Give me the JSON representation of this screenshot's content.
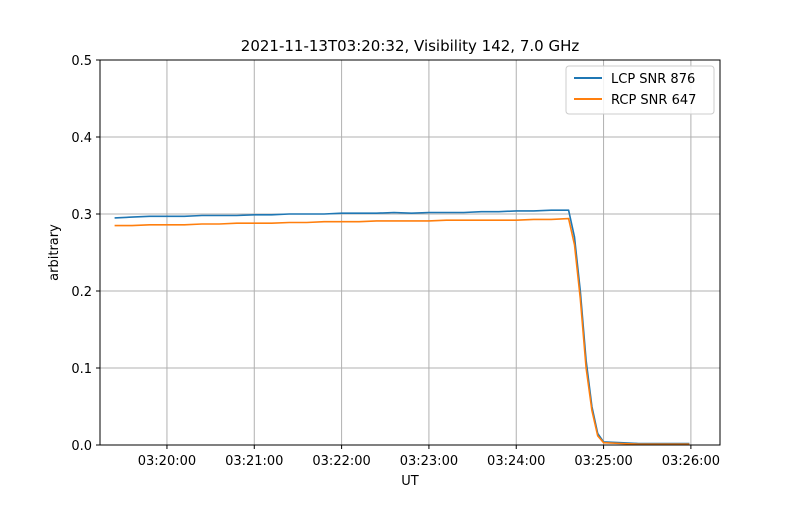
{
  "chart_data": {
    "type": "line",
    "title": "2021-11-13T03:20:32, Visibility 142, 7.0 GHz",
    "xlabel": "UT",
    "ylabel": "arbitrary",
    "xlim": [
      "03:19:14",
      "03:26:20"
    ],
    "ylim": [
      0,
      0.5
    ],
    "x_ticks": [
      "03:20:00",
      "03:21:00",
      "03:22:00",
      "03:23:00",
      "03:24:00",
      "03:25:00",
      "03:26:00"
    ],
    "y_ticks": [
      "0.0",
      "0.1",
      "0.2",
      "0.3",
      "0.4",
      "0.5"
    ],
    "grid": true,
    "legend_position": "upper right",
    "x": [
      "03:19:24",
      "03:19:36",
      "03:19:48",
      "03:20:00",
      "03:20:12",
      "03:20:24",
      "03:20:36",
      "03:20:48",
      "03:21:00",
      "03:21:12",
      "03:21:24",
      "03:21:36",
      "03:21:48",
      "03:22:00",
      "03:22:12",
      "03:22:24",
      "03:22:36",
      "03:22:48",
      "03:23:00",
      "03:23:12",
      "03:23:24",
      "03:23:36",
      "03:23:48",
      "03:24:00",
      "03:24:12",
      "03:24:24",
      "03:24:36",
      "03:24:40",
      "03:24:44",
      "03:24:48",
      "03:24:52",
      "03:24:56",
      "03:25:00",
      "03:25:12",
      "03:25:24",
      "03:25:36",
      "03:25:48",
      "03:25:59"
    ],
    "series": [
      {
        "name": "LCP SNR 876",
        "color": "#1f77b4",
        "values": [
          0.295,
          0.296,
          0.297,
          0.297,
          0.297,
          0.298,
          0.298,
          0.298,
          0.299,
          0.299,
          0.3,
          0.3,
          0.3,
          0.301,
          0.301,
          0.301,
          0.302,
          0.301,
          0.302,
          0.302,
          0.302,
          0.303,
          0.303,
          0.304,
          0.304,
          0.305,
          0.305,
          0.27,
          0.2,
          0.11,
          0.05,
          0.015,
          0.004,
          0.003,
          0.002,
          0.002,
          0.002,
          0.002
        ]
      },
      {
        "name": "RCP SNR 647",
        "color": "#ff7f0e",
        "values": [
          0.285,
          0.285,
          0.286,
          0.286,
          0.286,
          0.287,
          0.287,
          0.288,
          0.288,
          0.288,
          0.289,
          0.289,
          0.29,
          0.29,
          0.29,
          0.291,
          0.291,
          0.291,
          0.291,
          0.292,
          0.292,
          0.292,
          0.292,
          0.292,
          0.293,
          0.293,
          0.294,
          0.26,
          0.19,
          0.1,
          0.045,
          0.012,
          0.003,
          0.002,
          0.001,
          0.001,
          0.001,
          0.001
        ]
      }
    ]
  }
}
